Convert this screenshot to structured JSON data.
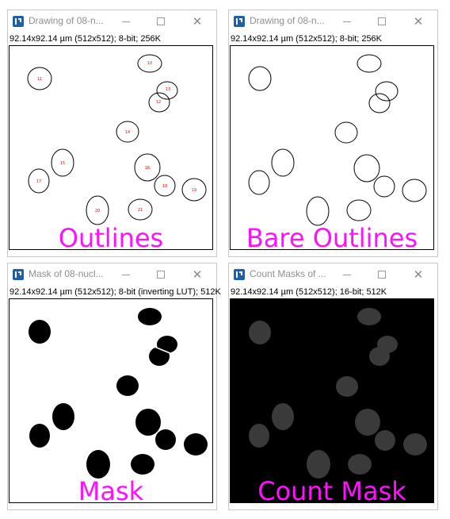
{
  "colors": {
    "caption": "#ff11ff",
    "outline_stroke": "#000000",
    "label_text": "#ff0000",
    "mask_fill": "#000000",
    "count_mask_background": "#000000",
    "count_mask_fill": "#3a3a3a",
    "title_text": "#8f8f8f"
  },
  "icons": {
    "app": "imagej-icon",
    "minimize": "minimize-icon",
    "maximize": "maximize-icon",
    "close": "close-icon"
  },
  "window_controls": {
    "close_glyph": "✕"
  },
  "windows": [
    {
      "title": "Drawing of 08-n...",
      "info": "92.14x92.14 µm (512x512); 8-bit; 256K",
      "caption": "Outlines",
      "labels": [
        "10",
        "11",
        "12",
        "13",
        "14",
        "15",
        "16",
        "17",
        "18",
        "19",
        "20",
        "21"
      ]
    },
    {
      "title": "Drawing of 08-n...",
      "info": "92.14x92.14 µm (512x512); 8-bit; 256K",
      "caption": "Bare Outlines"
    },
    {
      "title": "Mask of 08-nucl...",
      "info": "92.14x92.14 µm (512x512); 8-bit (inverting LUT); 512K",
      "caption": "Mask"
    },
    {
      "title": "Count Masks of ...",
      "info": "92.14x92.14 µm (512x512); 16-bit; 512K",
      "caption": "Count Mask"
    }
  ]
}
